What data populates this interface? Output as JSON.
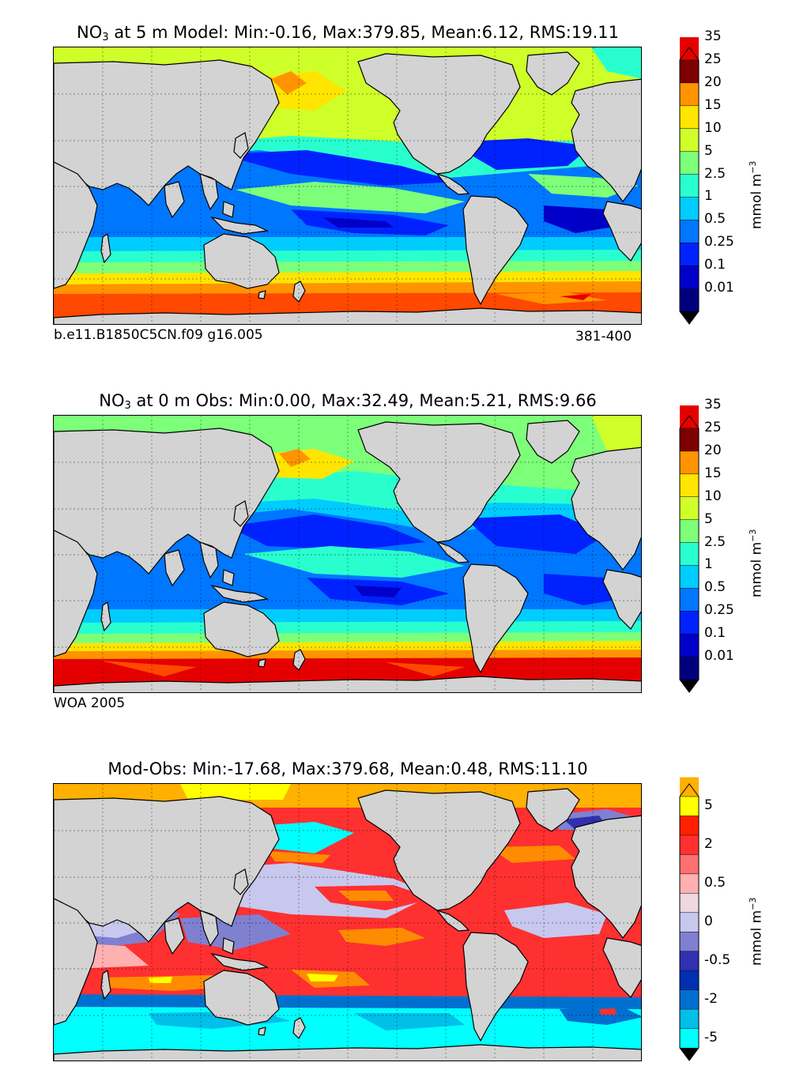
{
  "chart_data": [
    {
      "type": "heatmap",
      "subtype": "filled-contour world map",
      "title": "NO3 at 5 m Model: Min:-0.16, Max:379.85, Mean:6.12, RMS:19.11",
      "title_parts": {
        "species": "NO",
        "subscript": "3",
        "rest": " at 5 m Model: Min:-0.16, Max:379.85, Mean:6.12, RMS:19.11"
      },
      "footer_left": "b.e11.B1850C5CN.f09 g16.005",
      "footer_right": "381-400",
      "colorbar": {
        "label": "mmol m",
        "label_exponent": "−3",
        "ticks": [
          "0.01",
          "0.1",
          "0.25",
          "0.5",
          "1",
          "2.5",
          "5",
          "10",
          "15",
          "20",
          "25",
          "35"
        ],
        "colors": [
          "#00007f",
          "#0000c8",
          "#0022ff",
          "#0077ff",
          "#00ccff",
          "#29ffce",
          "#7dff7a",
          "#ceff29",
          "#ffe500",
          "#ff9400",
          "#ff4800",
          "#e50000",
          "#7f0000"
        ],
        "extend": "both"
      },
      "grid": true,
      "values": {
        "min": -0.16,
        "max": 379.85,
        "mean": 6.12,
        "rms": 19.11
      }
    },
    {
      "type": "heatmap",
      "subtype": "filled-contour world map",
      "title": "NO3 at 0 m Obs: Min:0.00, Max:32.49, Mean:5.21, RMS:9.66",
      "title_parts": {
        "species": "NO",
        "subscript": "3",
        "rest": " at 0 m Obs: Min:0.00, Max:32.49, Mean:5.21, RMS:9.66"
      },
      "footer_left": "WOA 2005",
      "colorbar": {
        "label": "mmol m",
        "label_exponent": "−3",
        "ticks": [
          "0.01",
          "0.1",
          "0.25",
          "0.5",
          "1",
          "2.5",
          "5",
          "10",
          "15",
          "20",
          "25",
          "35"
        ],
        "colors": [
          "#00007f",
          "#0000c8",
          "#0022ff",
          "#0077ff",
          "#00ccff",
          "#29ffce",
          "#7dff7a",
          "#ceff29",
          "#ffe500",
          "#ff9400",
          "#ff4800",
          "#e50000",
          "#7f0000"
        ],
        "extend": "both"
      },
      "grid": true,
      "values": {
        "min": 0.0,
        "max": 32.49,
        "mean": 5.21,
        "rms": 9.66
      }
    },
    {
      "type": "heatmap",
      "subtype": "filled-contour world map",
      "title": "Mod-Obs: Min:-17.68, Max:379.68, Mean:0.48, RMS:11.10",
      "colorbar": {
        "label": "mmol m",
        "label_exponent": "−3",
        "ticks": [
          "-5",
          "-2",
          "-0.5",
          "0",
          "0.5",
          "2",
          "5"
        ],
        "tick_positions": [
          1,
          3,
          5,
          7,
          9,
          11,
          13
        ],
        "colors": [
          "#00ffff",
          "#00bfe8",
          "#0070d0",
          "#0030b0",
          "#3030b0",
          "#8080d0",
          "#c8c8ee",
          "#f0d8e0",
          "#ffb0b0",
          "#ff7070",
          "#ff3030",
          "#ff2000",
          "#ff8c00",
          "#ffb000",
          "#ffff00"
        ],
        "extend": "both"
      },
      "grid": true,
      "values": {
        "min": -17.68,
        "max": 379.68,
        "mean": 0.48,
        "rms": 11.1
      }
    }
  ]
}
